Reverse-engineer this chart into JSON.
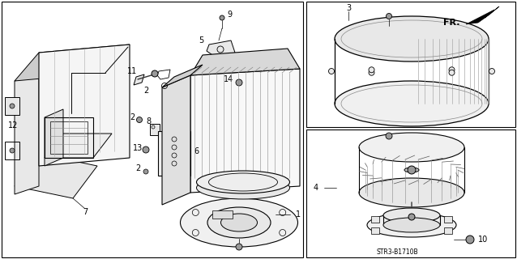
{
  "background_color": "#ffffff",
  "diagram_code": "STR3-B1710B",
  "fig_width": 6.38,
  "fig_height": 3.2,
  "dpi": 100,
  "line_color": "#000000",
  "text_color": "#000000",
  "label_fontsize": 7.0,
  "gray_light": "#e8e8e8",
  "gray_mid": "#cccccc",
  "gray_dark": "#999999"
}
